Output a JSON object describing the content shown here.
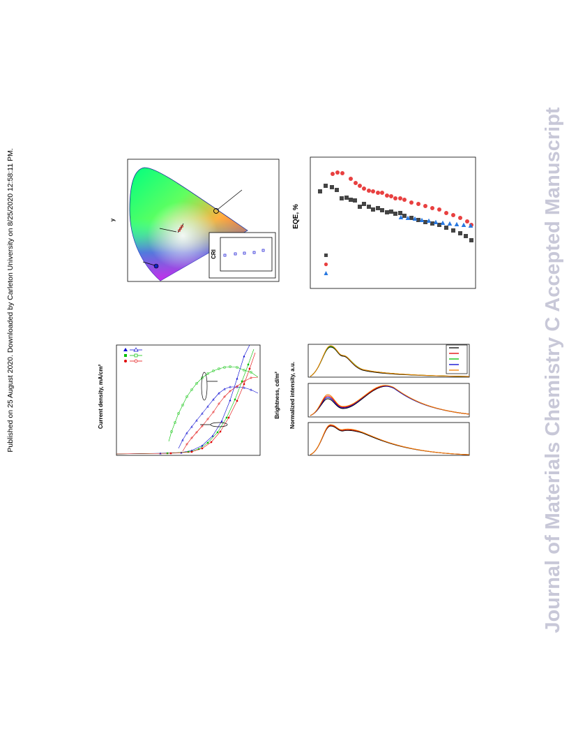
{
  "notice": "Published on 25 August 2020. Downloaded by Carleton University on 8/25/2020 12:58:11 PM.",
  "watermark": "Journal of Materials Chemistry C Accepted Manuscript",
  "figures": {
    "cie": {
      "y_label": "y",
      "inset_label": "CRI"
    },
    "eqe": {
      "y_label": "EQE, %"
    },
    "jvl": {
      "y_label": "Current density, mA/cm²"
    },
    "spectra": {
      "brightness_label": "Brightness, cd/m²",
      "intensity_label": "Normalized intensity, a.u."
    }
  }
}
